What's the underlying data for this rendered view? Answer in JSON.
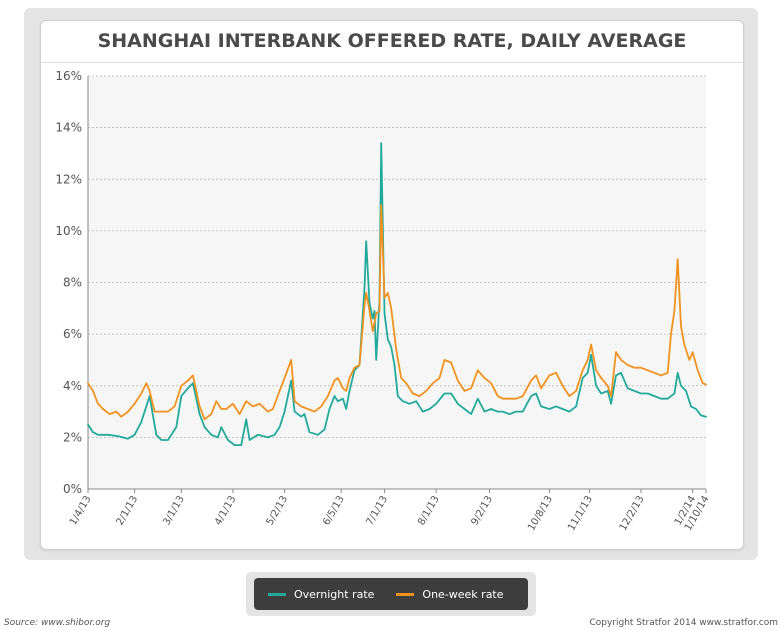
{
  "chart_data": {
    "type": "line",
    "title": "SHANGHAI INTERBANK OFFERED RATE, DAILY AVERAGE",
    "xlabel": "",
    "ylabel": "",
    "ylim": [
      0,
      16
    ],
    "yticks": [
      0,
      2,
      4,
      6,
      8,
      10,
      12,
      14,
      16
    ],
    "ytick_labels": [
      "0%",
      "2%",
      "4%",
      "6%",
      "8%",
      "10%",
      "12%",
      "14%",
      "16%"
    ],
    "xlim": [
      "2013-01-04",
      "2014-01-10"
    ],
    "xticks": [
      "2013-01-04",
      "2013-02-01",
      "2013-03-01",
      "2013-04-01",
      "2013-05-02",
      "2013-06-05",
      "2013-07-01",
      "2013-08-01",
      "2013-09-02",
      "2013-10-08",
      "2013-11-01",
      "2013-12-02",
      "2014-01-02",
      "2014-01-10"
    ],
    "xtick_labels": [
      "1/4/13",
      "2/1/13",
      "3/1/13",
      "4/1/13",
      "5/2/13",
      "6/5/13",
      "7/1/13",
      "8/1/13",
      "9/2/13",
      "10/8/13",
      "11/1/13",
      "12/2/13",
      "1/2/14",
      "1/10/14"
    ],
    "grid": true,
    "legend_position": "bottom-center",
    "series": [
      {
        "name": "Overnight rate",
        "color": "#23a99a",
        "points": [
          [
            "2013-01-04",
            2.5
          ],
          [
            "2013-01-07",
            2.2
          ],
          [
            "2013-01-10",
            2.1
          ],
          [
            "2013-01-16",
            2.1
          ],
          [
            "2013-01-22",
            2.05
          ],
          [
            "2013-01-28",
            1.95
          ],
          [
            "2013-02-01",
            2.1
          ],
          [
            "2013-02-05",
            2.6
          ],
          [
            "2013-02-08",
            3.2
          ],
          [
            "2013-02-10",
            3.6
          ],
          [
            "2013-02-14",
            2.1
          ],
          [
            "2013-02-17",
            1.9
          ],
          [
            "2013-02-21",
            1.9
          ],
          [
            "2013-02-26",
            2.4
          ],
          [
            "2013-03-01",
            3.6
          ],
          [
            "2013-03-05",
            3.9
          ],
          [
            "2013-03-08",
            4.1
          ],
          [
            "2013-03-12",
            2.9
          ],
          [
            "2013-03-15",
            2.4
          ],
          [
            "2013-03-19",
            2.1
          ],
          [
            "2013-03-23",
            2.0
          ],
          [
            "2013-03-25",
            2.4
          ],
          [
            "2013-03-29",
            1.9
          ],
          [
            "2013-04-02",
            1.7
          ],
          [
            "2013-04-06",
            1.7
          ],
          [
            "2013-04-09",
            2.7
          ],
          [
            "2013-04-11",
            1.9
          ],
          [
            "2013-04-16",
            2.1
          ],
          [
            "2013-04-22",
            2.0
          ],
          [
            "2013-04-26",
            2.1
          ],
          [
            "2013-04-29",
            2.4
          ],
          [
            "2013-05-02",
            3.0
          ],
          [
            "2013-05-06",
            4.2
          ],
          [
            "2013-05-08",
            3.0
          ],
          [
            "2013-05-12",
            2.8
          ],
          [
            "2013-05-14",
            2.9
          ],
          [
            "2013-05-17",
            2.2
          ],
          [
            "2013-05-22",
            2.1
          ],
          [
            "2013-05-26",
            2.3
          ],
          [
            "2013-05-29",
            3.1
          ],
          [
            "2013-06-01",
            3.6
          ],
          [
            "2013-06-03",
            3.4
          ],
          [
            "2013-06-06",
            3.5
          ],
          [
            "2013-06-08",
            3.1
          ],
          [
            "2013-06-10",
            3.8
          ],
          [
            "2013-06-13",
            4.6
          ],
          [
            "2013-06-16",
            4.8
          ],
          [
            "2013-06-19",
            7.8
          ],
          [
            "2013-06-20",
            9.6
          ],
          [
            "2013-06-22",
            7.2
          ],
          [
            "2013-06-24",
            6.6
          ],
          [
            "2013-06-25",
            6.9
          ],
          [
            "2013-06-26",
            5.0
          ],
          [
            "2013-06-28",
            7.3
          ],
          [
            "2013-06-29",
            13.4
          ],
          [
            "2013-07-01",
            6.8
          ],
          [
            "2013-07-03",
            5.8
          ],
          [
            "2013-07-05",
            5.5
          ],
          [
            "2013-07-07",
            4.8
          ],
          [
            "2013-07-09",
            3.6
          ],
          [
            "2013-07-12",
            3.4
          ],
          [
            "2013-07-16",
            3.3
          ],
          [
            "2013-07-20",
            3.4
          ],
          [
            "2013-07-24",
            3.0
          ],
          [
            "2013-07-28",
            3.1
          ],
          [
            "2013-08-01",
            3.3
          ],
          [
            "2013-08-06",
            3.7
          ],
          [
            "2013-08-10",
            3.7
          ],
          [
            "2013-08-14",
            3.3
          ],
          [
            "2013-08-18",
            3.1
          ],
          [
            "2013-08-22",
            2.9
          ],
          [
            "2013-08-26",
            3.5
          ],
          [
            "2013-08-30",
            3.0
          ],
          [
            "2013-09-03",
            3.1
          ],
          [
            "2013-09-07",
            3.0
          ],
          [
            "2013-09-10",
            3.0
          ],
          [
            "2013-09-14",
            2.9
          ],
          [
            "2013-09-18",
            3.0
          ],
          [
            "2013-09-22",
            3.0
          ],
          [
            "2013-09-27",
            3.6
          ],
          [
            "2013-09-30",
            3.7
          ],
          [
            "2013-10-03",
            3.2
          ],
          [
            "2013-10-08",
            3.1
          ],
          [
            "2013-10-12",
            3.2
          ],
          [
            "2013-10-16",
            3.1
          ],
          [
            "2013-10-20",
            3.0
          ],
          [
            "2013-10-24",
            3.2
          ],
          [
            "2013-10-28",
            4.3
          ],
          [
            "2013-10-31",
            4.5
          ],
          [
            "2013-11-02",
            5.2
          ],
          [
            "2013-11-05",
            4.0
          ],
          [
            "2013-11-08",
            3.7
          ],
          [
            "2013-11-12",
            3.8
          ],
          [
            "2013-11-14",
            3.3
          ],
          [
            "2013-11-17",
            4.4
          ],
          [
            "2013-11-20",
            4.5
          ],
          [
            "2013-11-24",
            3.9
          ],
          [
            "2013-11-28",
            3.8
          ],
          [
            "2013-12-02",
            3.7
          ],
          [
            "2013-12-06",
            3.7
          ],
          [
            "2013-12-10",
            3.6
          ],
          [
            "2013-12-14",
            3.5
          ],
          [
            "2013-12-18",
            3.5
          ],
          [
            "2013-12-22",
            3.7
          ],
          [
            "2013-12-24",
            4.5
          ],
          [
            "2013-12-26",
            4.0
          ],
          [
            "2013-12-29",
            3.8
          ],
          [
            "2014-01-01",
            3.2
          ],
          [
            "2014-01-04",
            3.1
          ],
          [
            "2014-01-07",
            2.85
          ],
          [
            "2014-01-10",
            2.8
          ]
        ]
      },
      {
        "name": "One-week rate",
        "color": "#f0921f",
        "points": [
          [
            "2013-01-04",
            4.1
          ],
          [
            "2013-01-07",
            3.8
          ],
          [
            "2013-01-10",
            3.3
          ],
          [
            "2013-01-13",
            3.1
          ],
          [
            "2013-01-17",
            2.9
          ],
          [
            "2013-01-21",
            3.0
          ],
          [
            "2013-01-24",
            2.8
          ],
          [
            "2013-01-28",
            3.0
          ],
          [
            "2013-02-01",
            3.3
          ],
          [
            "2013-02-05",
            3.7
          ],
          [
            "2013-02-08",
            4.1
          ],
          [
            "2013-02-10",
            3.8
          ],
          [
            "2013-02-13",
            3.0
          ],
          [
            "2013-02-17",
            3.0
          ],
          [
            "2013-02-21",
            3.0
          ],
          [
            "2013-02-25",
            3.2
          ],
          [
            "2013-03-01",
            4.0
          ],
          [
            "2013-03-05",
            4.2
          ],
          [
            "2013-03-08",
            4.4
          ],
          [
            "2013-03-12",
            3.2
          ],
          [
            "2013-03-15",
            2.7
          ],
          [
            "2013-03-19",
            2.9
          ],
          [
            "2013-03-22",
            3.4
          ],
          [
            "2013-03-25",
            3.1
          ],
          [
            "2013-03-28",
            3.1
          ],
          [
            "2013-04-01",
            3.3
          ],
          [
            "2013-04-05",
            2.9
          ],
          [
            "2013-04-09",
            3.4
          ],
          [
            "2013-04-13",
            3.2
          ],
          [
            "2013-04-17",
            3.3
          ],
          [
            "2013-04-22",
            3.0
          ],
          [
            "2013-04-25",
            3.1
          ],
          [
            "2013-04-29",
            3.8
          ],
          [
            "2013-05-02",
            4.3
          ],
          [
            "2013-05-06",
            5.0
          ],
          [
            "2013-05-08",
            3.4
          ],
          [
            "2013-05-12",
            3.2
          ],
          [
            "2013-05-16",
            3.1
          ],
          [
            "2013-05-20",
            3.0
          ],
          [
            "2013-05-24",
            3.2
          ],
          [
            "2013-05-28",
            3.6
          ],
          [
            "2013-06-01",
            4.2
          ],
          [
            "2013-06-03",
            4.3
          ],
          [
            "2013-06-06",
            3.9
          ],
          [
            "2013-06-08",
            3.8
          ],
          [
            "2013-06-10",
            4.3
          ],
          [
            "2013-06-13",
            4.7
          ],
          [
            "2013-06-16",
            4.8
          ],
          [
            "2013-06-19",
            7.1
          ],
          [
            "2013-06-20",
            7.6
          ],
          [
            "2013-06-22",
            6.9
          ],
          [
            "2013-06-24",
            6.1
          ],
          [
            "2013-06-26",
            6.8
          ],
          [
            "2013-06-28",
            6.9
          ],
          [
            "2013-06-29",
            11.0
          ],
          [
            "2013-07-01",
            7.4
          ],
          [
            "2013-07-03",
            7.6
          ],
          [
            "2013-07-05",
            7.0
          ],
          [
            "2013-07-08",
            5.4
          ],
          [
            "2013-07-11",
            4.3
          ],
          [
            "2013-07-14",
            4.1
          ],
          [
            "2013-07-18",
            3.7
          ],
          [
            "2013-07-22",
            3.6
          ],
          [
            "2013-07-26",
            3.8
          ],
          [
            "2013-07-30",
            4.1
          ],
          [
            "2013-08-03",
            4.3
          ],
          [
            "2013-08-06",
            5.0
          ],
          [
            "2013-08-10",
            4.9
          ],
          [
            "2013-08-14",
            4.2
          ],
          [
            "2013-08-18",
            3.8
          ],
          [
            "2013-08-22",
            3.9
          ],
          [
            "2013-08-26",
            4.6
          ],
          [
            "2013-08-30",
            4.3
          ],
          [
            "2013-09-03",
            4.1
          ],
          [
            "2013-09-07",
            3.6
          ],
          [
            "2013-09-10",
            3.5
          ],
          [
            "2013-09-14",
            3.5
          ],
          [
            "2013-09-18",
            3.5
          ],
          [
            "2013-09-22",
            3.6
          ],
          [
            "2013-09-27",
            4.2
          ],
          [
            "2013-09-30",
            4.4
          ],
          [
            "2013-10-03",
            3.9
          ],
          [
            "2013-10-08",
            4.4
          ],
          [
            "2013-10-12",
            4.5
          ],
          [
            "2013-10-16",
            4.0
          ],
          [
            "2013-10-20",
            3.6
          ],
          [
            "2013-10-24",
            3.8
          ],
          [
            "2013-10-28",
            4.6
          ],
          [
            "2013-10-31",
            5.0
          ],
          [
            "2013-11-02",
            5.6
          ],
          [
            "2013-11-05",
            4.6
          ],
          [
            "2013-11-08",
            4.3
          ],
          [
            "2013-11-12",
            4.0
          ],
          [
            "2013-11-14",
            3.6
          ],
          [
            "2013-11-17",
            5.3
          ],
          [
            "2013-11-20",
            5.0
          ],
          [
            "2013-11-24",
            4.8
          ],
          [
            "2013-11-28",
            4.7
          ],
          [
            "2013-12-02",
            4.7
          ],
          [
            "2013-12-06",
            4.6
          ],
          [
            "2013-12-10",
            4.5
          ],
          [
            "2013-12-14",
            4.4
          ],
          [
            "2013-12-18",
            4.5
          ],
          [
            "2013-12-20",
            6.0
          ],
          [
            "2013-12-22",
            6.9
          ],
          [
            "2013-12-24",
            8.9
          ],
          [
            "2013-12-26",
            6.3
          ],
          [
            "2013-12-28",
            5.6
          ],
          [
            "2013-12-31",
            5.0
          ],
          [
            "2014-01-02",
            5.3
          ],
          [
            "2014-01-05",
            4.6
          ],
          [
            "2014-01-08",
            4.1
          ],
          [
            "2014-01-10",
            4.05
          ]
        ]
      }
    ]
  },
  "legend": {
    "items": [
      {
        "label": "Overnight rate",
        "color": "#23a99a"
      },
      {
        "label": "One-week rate",
        "color": "#f0921f"
      }
    ]
  },
  "footer": {
    "source": "Source: www.shibor.org",
    "credit": "Copyright Stratfor 2014   www.stratfor.com"
  }
}
